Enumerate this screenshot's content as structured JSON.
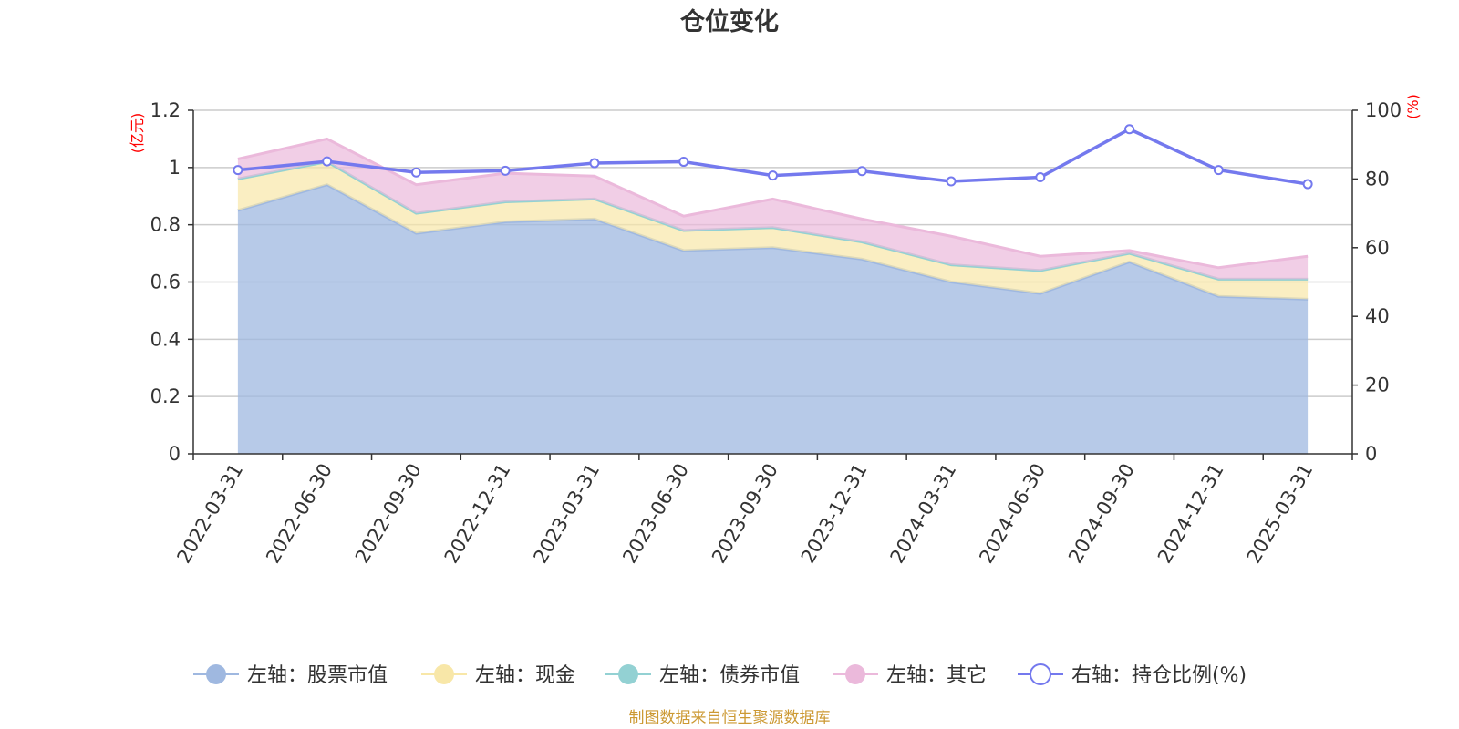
{
  "colors": {
    "stock": "#9fb8e0",
    "cash": "#f8e7a8",
    "bond": "#93d1d3",
    "other": "#ebb9db",
    "ratio": "#7479ee",
    "unit": "#ff0000",
    "source": "#cc9933"
  },
  "chart_data": {
    "type": "area",
    "title": "仓位变化",
    "source_note": "制图数据来自恒生聚源数据库",
    "left_axis": {
      "unit": "(亿元)",
      "ylim": [
        0,
        1.2
      ],
      "ticks": [
        "0",
        "0.2",
        "0.4",
        "0.6",
        "0.8",
        "1",
        "1.2"
      ]
    },
    "right_axis": {
      "unit": "(%)",
      "ylim": [
        0,
        100
      ],
      "ticks": [
        "0",
        "20",
        "40",
        "60",
        "80",
        "100"
      ]
    },
    "grid": true,
    "legend_position": "bottom",
    "categories": [
      "2022-03-31",
      "2022-06-30",
      "2022-09-30",
      "2022-12-31",
      "2023-03-31",
      "2023-06-30",
      "2023-09-30",
      "2023-12-31",
      "2024-03-31",
      "2024-06-30",
      "2024-09-30",
      "2024-12-31",
      "2025-03-31"
    ],
    "series": [
      {
        "name": "左轴：股票市值",
        "axis": "left",
        "stacked": true,
        "values": [
          0.85,
          0.94,
          0.77,
          0.81,
          0.82,
          0.71,
          0.72,
          0.68,
          0.6,
          0.56,
          0.67,
          0.55,
          0.54
        ]
      },
      {
        "name": "左轴：现金",
        "axis": "left",
        "stacked": true,
        "values": [
          0.11,
          0.08,
          0.07,
          0.07,
          0.07,
          0.07,
          0.07,
          0.06,
          0.06,
          0.08,
          0.03,
          0.06,
          0.07
        ]
      },
      {
        "name": "左轴：债券市值",
        "axis": "left",
        "stacked": true,
        "values": [
          0,
          0,
          0,
          0,
          0,
          0,
          0,
          0,
          0,
          0,
          0,
          0,
          0
        ]
      },
      {
        "name": "左轴：其它",
        "axis": "left",
        "stacked": true,
        "values": [
          0.07,
          0.08,
          0.1,
          0.1,
          0.08,
          0.05,
          0.1,
          0.08,
          0.1,
          0.05,
          0.01,
          0.04,
          0.08
        ]
      },
      {
        "name": "右轴：持仓比例(%)",
        "axis": "right",
        "type": "line",
        "values": [
          82.6,
          85.1,
          81.9,
          82.4,
          84.6,
          85.0,
          81.0,
          82.3,
          79.3,
          80.5,
          94.5,
          82.6,
          78.5
        ]
      }
    ]
  }
}
